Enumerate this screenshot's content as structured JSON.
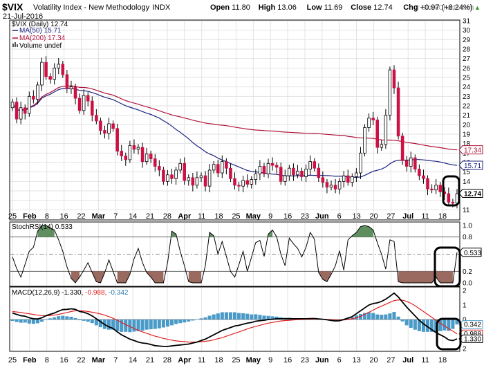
{
  "header": {
    "symbol": "$VIX",
    "name": "Volatility Index - New Methodology",
    "exchange": "INDX",
    "date": "21-Jul-2016",
    "watermark": "© StockCharts.com",
    "quote": [
      {
        "label": "Open",
        "value": "11.80"
      },
      {
        "label": "High",
        "value": "13.06"
      },
      {
        "label": "Low",
        "value": "11.69"
      },
      {
        "label": "Close",
        "value": "12.74"
      },
      {
        "label": "Chg",
        "value": "+0.97 (+8.24%)",
        "arrow": "▲"
      }
    ]
  },
  "colors": {
    "up": "#ffffff",
    "down": "#cc1144",
    "ma50": "#1a237e",
    "ma200": "#b0123a",
    "rsi_fill_high": "#5f8f5f",
    "rsi_fill_low": "#9a6a60",
    "macd_line": "#000000",
    "signal_line": "#e02020",
    "histogram": "#4a9ac8",
    "annotation": "#000000"
  },
  "x_axis": {
    "labels": [
      "25",
      "Feb",
      "8",
      "16",
      "22",
      "Mar",
      "7",
      "14",
      "21",
      "28",
      "Apr",
      "11",
      "18",
      "25",
      "May",
      "9",
      "16",
      "23",
      "Jun",
      "6",
      "13",
      "20",
      "27",
      "Jul",
      "11",
      "18"
    ]
  },
  "chart_data": [
    {
      "type": "candlestick",
      "title": "$VIX (Daily) 12.74",
      "legend": [
        {
          "name": "$VIX (Daily)",
          "value": "12.74"
        },
        {
          "name": "MA(50)",
          "value": "15.71"
        },
        {
          "name": "MA(200)",
          "value": "17.34"
        },
        {
          "name": "Volume",
          "value": "undef"
        }
      ],
      "ylim": [
        10,
        31
      ],
      "yticks": [
        11,
        12,
        13,
        14,
        15,
        16,
        17,
        18,
        19,
        20,
        21,
        22,
        23,
        24,
        25,
        26,
        27,
        28,
        29,
        30,
        31
      ],
      "ytick_labels": [
        "11",
        "",
        "",
        "14",
        "15",
        "16",
        "17",
        "18",
        "19",
        "20",
        "21",
        "22",
        "23",
        "24",
        "25",
        "26",
        "27",
        "28",
        "29",
        "30",
        "31"
      ],
      "last_labels": [
        {
          "text": "17.34",
          "value": 17.34,
          "series": "ma200"
        },
        {
          "text": "15.71",
          "value": 15.71,
          "series": "ma50"
        },
        {
          "text": "12.74",
          "value": 12.74,
          "series": "close"
        }
      ],
      "close": [
        22.4,
        20.6,
        21.8,
        21.2,
        23.0,
        22.7,
        24.2,
        26.6,
        25.1,
        24.8,
        26.0,
        26.4,
        25.3,
        23.8,
        24.0,
        22.8,
        21.5,
        23.1,
        22.5,
        21.0,
        20.4,
        19.4,
        19.1,
        20.1,
        19.6,
        17.2,
        16.7,
        16.3,
        17.8,
        17.4,
        17.6,
        16.1,
        16.9,
        16.4,
        15.6,
        15.2,
        14.0,
        14.7,
        14.3,
        15.2,
        15.9,
        14.1,
        14.4,
        13.6,
        14.4,
        14.6,
        13.5,
        15.2,
        15.8,
        14.9,
        16.1,
        15.4,
        14.3,
        13.6,
        13.5,
        14.1,
        13.7,
        14.2,
        14.8,
        15.6,
        14.8,
        15.9,
        15.7,
        15.5,
        14.0,
        14.6,
        15.4,
        14.7,
        15.1,
        14.5,
        15.3,
        16.1,
        15.4,
        14.4,
        13.9,
        13.4,
        13.6,
        13.2,
        14.0,
        14.6,
        13.9,
        14.5,
        14.9,
        17.0,
        19.7,
        20.7,
        20.5,
        17.6,
        17.9,
        21.0,
        25.8,
        23.9,
        18.8,
        16.2,
        15.6,
        16.5,
        15.3,
        14.6,
        14.3,
        13.2,
        13.1,
        13.6,
        12.9,
        12.7,
        11.8,
        11.7,
        12.7
      ]
    },
    {
      "type": "line",
      "title": "StochRSI(14) 0.533",
      "ylim": [
        0,
        1
      ],
      "yticks": [
        0,
        0.2,
        0.4,
        0.6,
        0.8,
        1.0
      ],
      "ytick_labels": [
        "0.0",
        "0.2",
        "",
        "",
        "0.8",
        "1.0"
      ],
      "reference_lines": [
        0.2,
        0.5,
        0.8
      ],
      "last_label": "0.533",
      "values": [
        0.45,
        0.25,
        0.1,
        0.32,
        0.55,
        0.62,
        0.9,
        1.0,
        1.0,
        0.96,
        0.92,
        0.75,
        0.55,
        0.28,
        0.08,
        0.0,
        0.1,
        0.22,
        0.35,
        0.18,
        0.02,
        0.0,
        0.18,
        0.4,
        0.2,
        0.0,
        0.0,
        0.0,
        0.15,
        0.42,
        0.6,
        0.35,
        0.18,
        0.1,
        0.0,
        0.0,
        0.0,
        0.36,
        0.9,
        0.85,
        0.55,
        0.3,
        0.02,
        0.0,
        0.0,
        0.0,
        0.3,
        0.88,
        0.82,
        0.5,
        0.72,
        0.46,
        0.2,
        0.1,
        0.32,
        0.55,
        0.2,
        0.45,
        0.7,
        0.74,
        0.46,
        0.85,
        0.92,
        0.8,
        0.5,
        0.3,
        0.78,
        0.68,
        0.6,
        0.45,
        0.62,
        0.88,
        0.76,
        0.18,
        0.06,
        0.02,
        0.15,
        0.3,
        0.56,
        0.22,
        0.75,
        0.82,
        0.88,
        0.98,
        1.0,
        0.98,
        0.92,
        0.7,
        0.5,
        0.24,
        0.75,
        0.72,
        0.02,
        0.0,
        0.0,
        0.0,
        0.0,
        0.0,
        0.0,
        0.0,
        0.0,
        0.1,
        0.0,
        0.0,
        0.0,
        0.0,
        0.533
      ]
    },
    {
      "type": "line",
      "title": "MACD(12,26,9) -1.330, -0.988, -0.342",
      "legend_parts": [
        {
          "text": "MACD(12,26,9) -1.330,",
          "color": "#000000"
        },
        {
          "text": " -0.988,",
          "color": "#e02020"
        },
        {
          "text": " -0.342",
          "color": "#2a7ab0"
        }
      ],
      "ylim": [
        -2,
        2
      ],
      "yticks": [
        -2,
        -1,
        0,
        1,
        2
      ],
      "ytick_labels": [
        "2",
        "",
        "0",
        "1",
        "2"
      ],
      "last_labels": [
        {
          "text": "0.342",
          "value": -0.342
        },
        {
          "text": "0.988",
          "value": -0.988
        },
        {
          "text": "1.330",
          "value": -1.33
        }
      ],
      "series": [
        {
          "name": "MACD(12,26,9)",
          "values": [
            0.45,
            0.35,
            0.26,
            0.23,
            0.12,
            0.05,
            0.04,
            0.12,
            0.26,
            0.36,
            0.45,
            0.58,
            0.68,
            0.7,
            0.74,
            0.7,
            0.55,
            0.5,
            0.4,
            0.25,
            0.05,
            -0.15,
            -0.35,
            -0.5,
            -0.62,
            -0.85,
            -1.05,
            -1.2,
            -1.35,
            -1.45,
            -1.55,
            -1.62,
            -1.65,
            -1.72,
            -1.8,
            -1.83,
            -1.85,
            -1.85,
            -1.82,
            -1.78,
            -1.75,
            -1.72,
            -1.69,
            -1.62,
            -1.55,
            -1.45,
            -1.35,
            -1.2,
            -1.05,
            -0.9,
            -0.75,
            -0.65,
            -0.55,
            -0.45,
            -0.4,
            -0.32,
            -0.25,
            -0.2,
            -0.12,
            -0.08,
            -0.05,
            0.0,
            0.02,
            0.05,
            0.05,
            0.05,
            0.06,
            0.05,
            0.05,
            0.05,
            0.05,
            0.06,
            0.07,
            0.04,
            0.02,
            -0.02,
            -0.06,
            -0.1,
            -0.08,
            0.0,
            0.1,
            0.2,
            0.4,
            0.6,
            0.8,
            1.0,
            1.1,
            1.15,
            1.25,
            1.4,
            1.6,
            1.82,
            1.55,
            1.2,
            0.85,
            0.55,
            0.25,
            -0.05,
            -0.3,
            -0.5,
            -0.7,
            -0.9,
            -1.05,
            -1.2,
            -1.4,
            -1.45,
            -1.33
          ]
        },
        {
          "name": "Signal",
          "values": [
            0.55,
            0.52,
            0.48,
            0.44,
            0.4,
            0.35,
            0.3,
            0.27,
            0.26,
            0.28,
            0.3,
            0.35,
            0.42,
            0.48,
            0.55,
            0.6,
            0.6,
            0.59,
            0.55,
            0.5,
            0.45,
            0.38,
            0.3,
            0.2,
            0.08,
            -0.05,
            -0.2,
            -0.35,
            -0.48,
            -0.62,
            -0.75,
            -0.85,
            -0.95,
            -1.05,
            -1.15,
            -1.22,
            -1.3,
            -1.36,
            -1.42,
            -1.47,
            -1.5,
            -1.52,
            -1.55,
            -1.55,
            -1.55,
            -1.53,
            -1.5,
            -1.46,
            -1.4,
            -1.32,
            -1.25,
            -1.15,
            -1.05,
            -0.95,
            -0.85,
            -0.75,
            -0.65,
            -0.55,
            -0.48,
            -0.4,
            -0.32,
            -0.25,
            -0.2,
            -0.15,
            -0.1,
            -0.07,
            -0.05,
            -0.03,
            -0.01,
            0.0,
            0.02,
            0.02,
            0.03,
            0.03,
            0.02,
            0.01,
            -0.01,
            -0.03,
            -0.04,
            -0.03,
            0.0,
            0.05,
            0.12,
            0.22,
            0.35,
            0.5,
            0.65,
            0.8,
            0.92,
            1.05,
            1.18,
            1.3,
            1.35,
            1.33,
            1.25,
            1.12,
            0.95,
            0.75,
            0.55,
            0.35,
            0.15,
            -0.05,
            -0.25,
            -0.45,
            -0.62,
            -0.8,
            -0.99
          ]
        },
        {
          "name": "Histogram",
          "values": [
            -0.1,
            -0.17,
            -0.22,
            -0.21,
            -0.28,
            -0.3,
            -0.26,
            -0.15,
            0.0,
            0.08,
            0.15,
            0.23,
            0.26,
            0.22,
            0.19,
            0.1,
            -0.05,
            -0.09,
            -0.15,
            -0.25,
            -0.4,
            -0.53,
            -0.65,
            -0.7,
            -0.7,
            -0.8,
            -0.85,
            -0.85,
            -0.87,
            -0.83,
            -0.8,
            -0.77,
            -0.7,
            -0.67,
            -0.65,
            -0.61,
            -0.55,
            -0.49,
            -0.4,
            -0.31,
            -0.25,
            -0.2,
            -0.14,
            -0.07,
            0.0,
            0.08,
            0.15,
            0.26,
            0.35,
            0.42,
            0.5,
            0.5,
            0.5,
            0.5,
            0.45,
            0.43,
            0.4,
            0.35,
            0.36,
            0.32,
            0.27,
            0.25,
            0.22,
            0.2,
            0.15,
            0.12,
            0.11,
            0.08,
            0.06,
            0.05,
            0.03,
            0.04,
            0.04,
            0.01,
            0.0,
            -0.03,
            -0.05,
            -0.07,
            -0.04,
            0.03,
            0.1,
            0.15,
            0.28,
            0.38,
            0.45,
            0.5,
            0.45,
            0.35,
            0.33,
            0.35,
            0.42,
            0.52,
            0.2,
            -0.13,
            -0.4,
            -0.57,
            -0.7,
            -0.8,
            -0.85,
            -0.85,
            -0.85,
            -0.85,
            -0.8,
            -0.75,
            -0.78,
            -0.65,
            -0.34
          ]
        }
      ]
    }
  ]
}
